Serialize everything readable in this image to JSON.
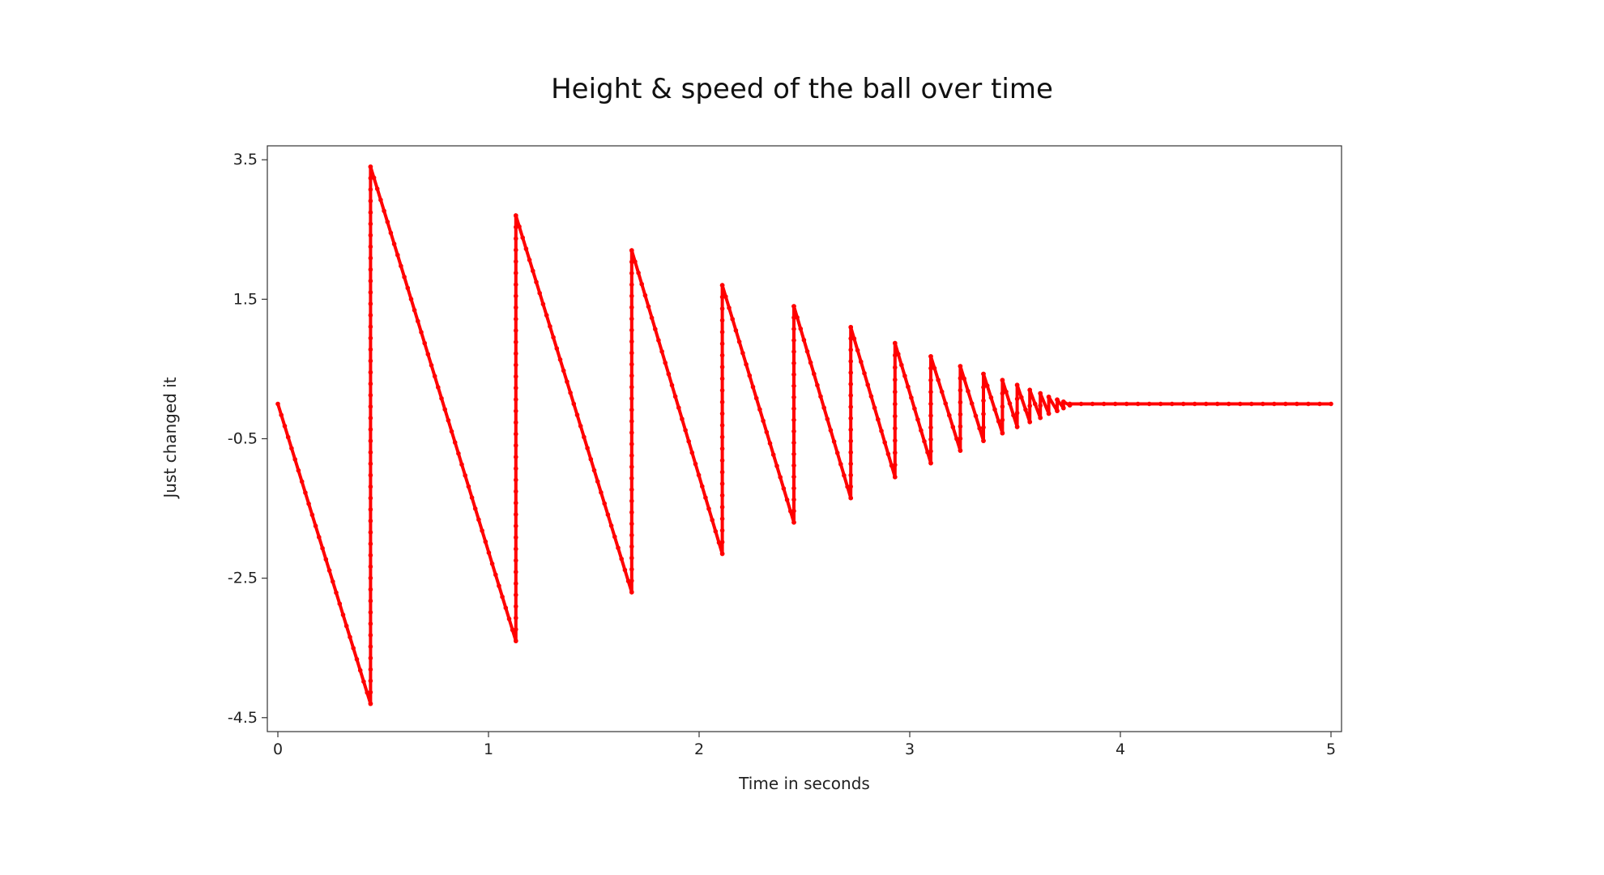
{
  "chart_data": {
    "type": "line",
    "title": "Height & speed of the ball over time",
    "xlabel": "Time in seconds",
    "ylabel": "Just changed it",
    "xlim": [
      -0.05,
      5.05
    ],
    "ylim": [
      -4.7,
      3.7
    ],
    "xticks": [
      0,
      1,
      2,
      3,
      4,
      5
    ],
    "xtick_labels": [
      "0",
      "1",
      "2",
      "3",
      "4",
      "5"
    ],
    "yticks": [
      3.5,
      1.5,
      -0.5,
      -2.5,
      -4.5
    ],
    "ytick_labels": [
      "3.5",
      "1.5",
      "-0.5",
      "-2.5",
      "-4.5"
    ],
    "grid": false,
    "legend": "none",
    "series": [
      {
        "color": "#ff0000",
        "marker": "dot",
        "x": [
          0.0,
          0.44,
          0.44,
          1.13,
          1.13,
          1.68,
          1.68,
          2.11,
          2.11,
          2.45,
          2.45,
          2.72,
          2.72,
          2.93,
          2.93,
          3.1,
          3.1,
          3.24,
          3.24,
          3.35,
          3.35,
          3.44,
          3.44,
          3.51,
          3.51,
          3.57,
          3.57,
          3.62,
          3.62,
          3.66,
          3.66,
          3.7,
          3.7,
          3.73,
          3.73,
          3.76,
          3.76,
          5.0
        ],
        "y": [
          0.0,
          -4.3,
          3.4,
          -3.4,
          2.7,
          -2.7,
          2.2,
          -2.15,
          1.7,
          -1.7,
          1.4,
          -1.35,
          1.1,
          -1.05,
          0.87,
          -0.85,
          0.68,
          -0.67,
          0.54,
          -0.53,
          0.43,
          -0.42,
          0.34,
          -0.33,
          0.27,
          -0.26,
          0.2,
          -0.2,
          0.15,
          -0.14,
          0.1,
          -0.1,
          0.06,
          -0.06,
          0.03,
          -0.02,
          0.0,
          0.0
        ]
      }
    ]
  }
}
